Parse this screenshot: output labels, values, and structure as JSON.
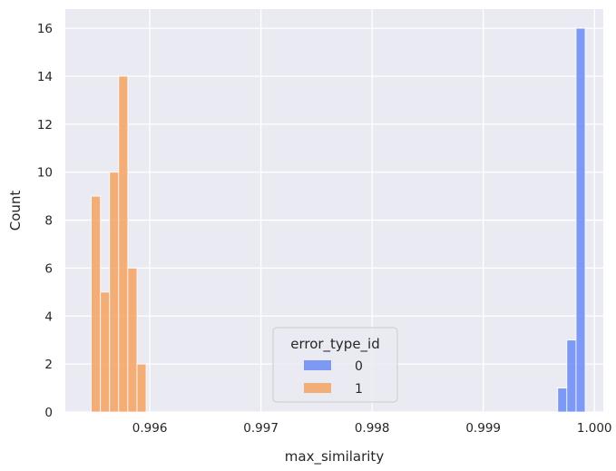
{
  "chart_data": {
    "type": "bar",
    "subtype": "histogram",
    "xlabel": "max_similarity",
    "ylabel": "Count",
    "xlim": [
      0.99524,
      1.00008
    ],
    "ylim": [
      0,
      16.8
    ],
    "xticks": [
      0.996,
      0.997,
      0.998,
      0.999,
      1.0
    ],
    "xtick_labels": [
      "0.996",
      "0.997",
      "0.998",
      "0.999",
      "1.000"
    ],
    "yticks": [
      0,
      2,
      4,
      6,
      8,
      10,
      12,
      14,
      16
    ],
    "ytick_labels": [
      "0",
      "2",
      "4",
      "6",
      "8",
      "10",
      "12",
      "14",
      "16"
    ],
    "grid": true,
    "legend": {
      "title": "error_type_id",
      "placement": "lower-center"
    },
    "bin_width": 8.23e-05,
    "series": [
      {
        "name": "0",
        "color": "#6b8bf5",
        "bins": [
          {
            "x0": 0.99967,
            "x1": 0.999752,
            "count": 1
          },
          {
            "x0": 0.999752,
            "x1": 0.999835,
            "count": 3
          },
          {
            "x0": 0.999835,
            "x1": 0.999917,
            "count": 16
          }
        ]
      },
      {
        "name": "1",
        "color": "#f4a261",
        "bins": [
          {
            "x0": 0.995473,
            "x1": 0.995556,
            "count": 9
          },
          {
            "x0": 0.995556,
            "x1": 0.995638,
            "count": 5
          },
          {
            "x0": 0.995638,
            "x1": 0.99572,
            "count": 10
          },
          {
            "x0": 0.99572,
            "x1": 0.995802,
            "count": 14
          },
          {
            "x0": 0.995802,
            "x1": 0.995885,
            "count": 6
          },
          {
            "x0": 0.995885,
            "x1": 0.995967,
            "count": 2
          }
        ]
      }
    ]
  }
}
